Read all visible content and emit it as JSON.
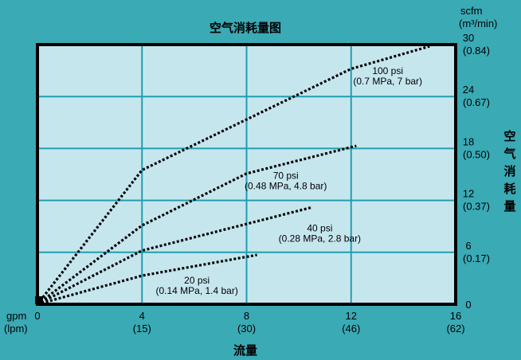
{
  "chart_data": {
    "type": "line",
    "title": "空气消耗量图",
    "xlabel": "流量",
    "ylabel": "空气消耗量",
    "x_unit_top": "gpm",
    "x_unit_bottom": "(lpm)",
    "y_unit_top": "scfm",
    "y_unit_bottom": "(m³/min)",
    "xlim": [
      0,
      16
    ],
    "ylim": [
      0,
      30
    ],
    "grid": true,
    "x_ticks": [
      {
        "value": 0,
        "label": "0",
        "sub": ""
      },
      {
        "value": 4,
        "label": "4",
        "sub": "(15)"
      },
      {
        "value": 8,
        "label": "8",
        "sub": "(30)"
      },
      {
        "value": 12,
        "label": "12",
        "sub": "(46)"
      },
      {
        "value": 16,
        "label": "16",
        "sub": "(62)"
      }
    ],
    "y_ticks": [
      {
        "value": 0,
        "label": "0",
        "sub": ""
      },
      {
        "value": 6,
        "label": "6",
        "sub": "(0.17)"
      },
      {
        "value": 12,
        "label": "12",
        "sub": "(0.37)"
      },
      {
        "value": 18,
        "label": "18",
        "sub": "(0.50)"
      },
      {
        "value": 24,
        "label": "24",
        "sub": "(0.67)"
      },
      {
        "value": 30,
        "label": "30",
        "sub": "(0.84)"
      }
    ],
    "series": [
      {
        "name": "20 psi",
        "label_lines": [
          "20 psi",
          "(0.14 MPa, 1.4 bar)"
        ],
        "label_at": [
          6.1,
          2.4
        ],
        "x": [
          0,
          4,
          8.4
        ],
        "y": [
          0,
          3.3,
          5.7
        ]
      },
      {
        "name": "40 psi",
        "label_lines": [
          "40 psi",
          "(0.28 MPa, 2.8 bar)"
        ],
        "label_at": [
          10.8,
          8.4
        ],
        "x": [
          0,
          4,
          10.5
        ],
        "y": [
          0,
          6.2,
          11.2
        ]
      },
      {
        "name": "70 psi",
        "label_lines": [
          "70 psi",
          "(0.48 MPa, 4.8 bar)"
        ],
        "label_at": [
          9.5,
          14.5
        ],
        "x": [
          0,
          4,
          8,
          12.2
        ],
        "y": [
          0,
          9.1,
          15.1,
          18.3
        ]
      },
      {
        "name": "100 psi",
        "label_lines": [
          "100 psi",
          "(0.7 MPa, 7 bar)"
        ],
        "label_at": [
          13.4,
          26.6
        ],
        "x": [
          0,
          4,
          12,
          15
        ],
        "y": [
          0,
          15.5,
          27.2,
          29.8
        ]
      }
    ]
  }
}
